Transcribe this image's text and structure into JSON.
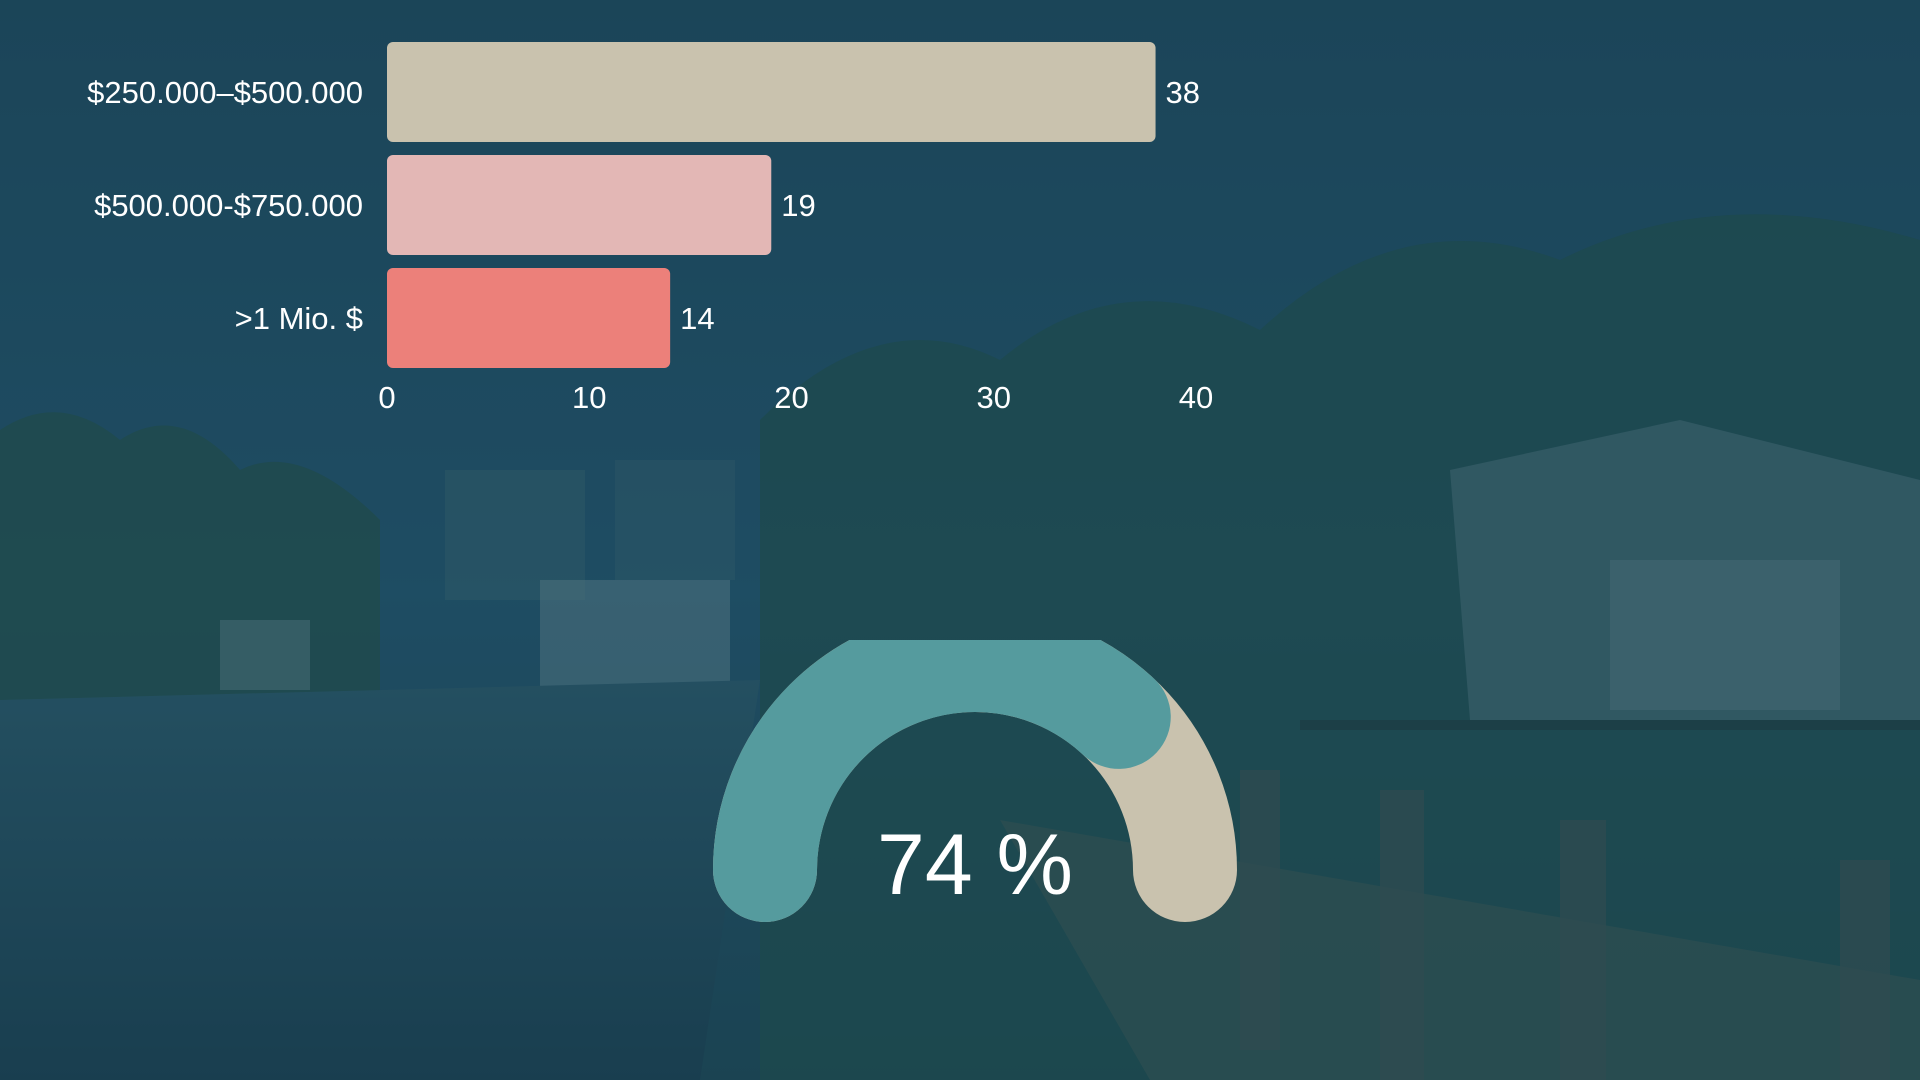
{
  "chart_data": [
    {
      "type": "bar",
      "orientation": "horizontal",
      "categories": [
        "$250.000–$500.000",
        "$500.000-$750.000",
        ">1 Mio. $"
      ],
      "values": [
        38,
        19,
        14
      ],
      "value_labels": [
        "38",
        "19",
        "14"
      ],
      "bar_colors": [
        "#c9c2ae",
        "#e3b7b5",
        "#ec807a"
      ],
      "xlim": [
        0,
        40
      ],
      "xticks": [
        "0",
        "10",
        "20",
        "30",
        "40"
      ],
      "grid": false,
      "legend": "none"
    },
    {
      "type": "gauge",
      "value": 74,
      "max": 100,
      "label": "74 %",
      "fill_color": "#559b9e",
      "track_color": "#c9c2ae"
    }
  ],
  "background": {
    "overlay_color": "#1d4a5c",
    "scene_icon": "waterfront-canal-photo"
  }
}
